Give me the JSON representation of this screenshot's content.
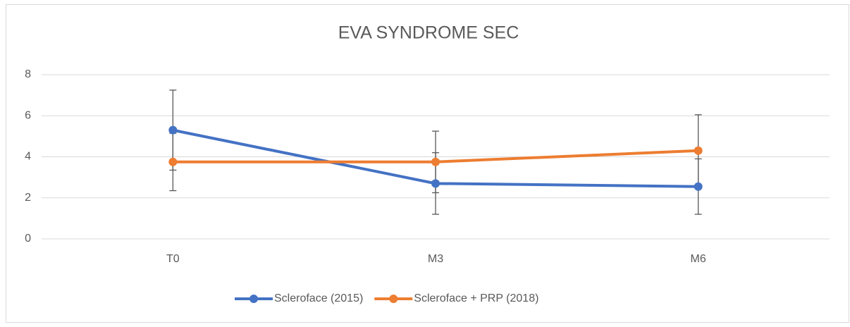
{
  "chart_data": {
    "type": "line",
    "title": "EVA SYNDROME SEC",
    "categories": [
      "T0",
      "M3",
      "M6"
    ],
    "series": [
      {
        "name": "Scleroface (2015)",
        "color": "#4472c4",
        "values": [
          5.3,
          2.7,
          2.55
        ],
        "errors": [
          1.95,
          1.5,
          1.35
        ]
      },
      {
        "name": "Scleroface + PRP (2018)",
        "color": "#ed7d31",
        "values": [
          3.75,
          3.75,
          4.3
        ],
        "errors": [
          1.4,
          1.5,
          1.75
        ]
      }
    ],
    "ylim": [
      0,
      8
    ],
    "yticks": [
      0,
      2,
      4,
      6,
      8
    ],
    "grid": true,
    "legend": "bottom"
  }
}
